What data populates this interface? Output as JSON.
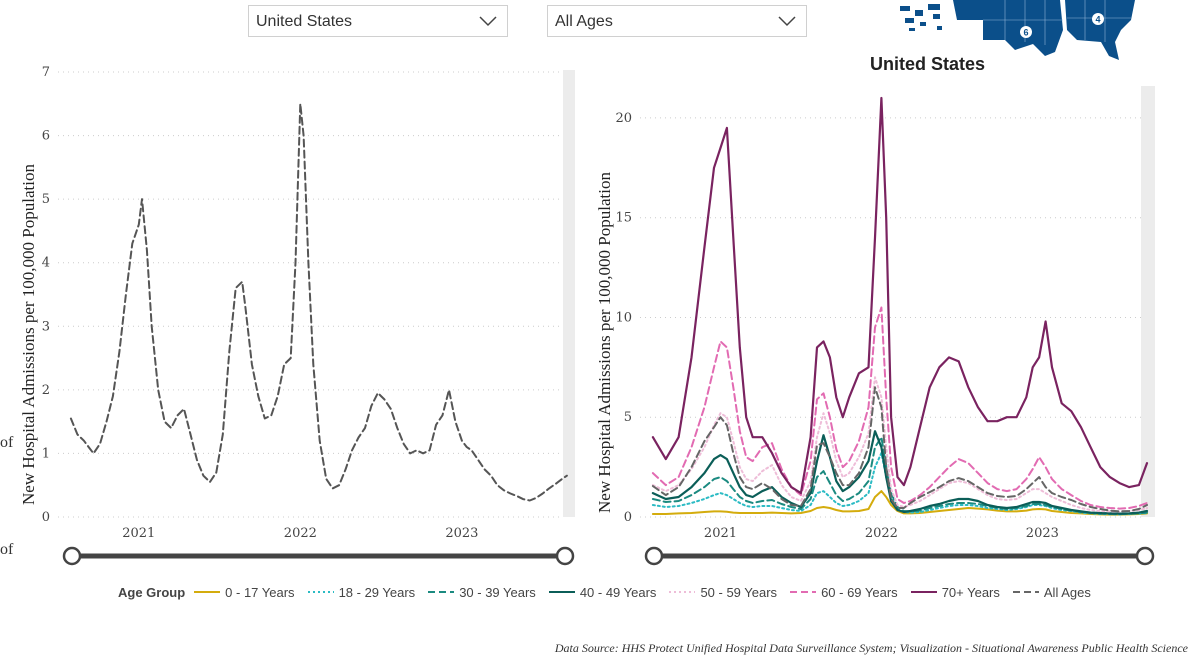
{
  "filters": {
    "region": {
      "selected": "United States"
    },
    "age": {
      "selected": "All Ages"
    }
  },
  "map": {
    "badges": [
      "6",
      "4"
    ]
  },
  "stray_text": [
    "of",
    "of"
  ],
  "legend": {
    "title": "Age Group",
    "items": [
      {
        "label": "0 - 17 Years",
        "color": "#d4ac0d",
        "dash": "solid"
      },
      {
        "label": "18 - 29 Years",
        "color": "#2bbbc4",
        "dash": "dot"
      },
      {
        "label": "30 - 39 Years",
        "color": "#1b8a80",
        "dash": "dash"
      },
      {
        "label": "40 - 49 Years",
        "color": "#0b5e58",
        "dash": "solid"
      },
      {
        "label": "50 - 59 Years",
        "color": "#eebdd8",
        "dash": "dot"
      },
      {
        "label": "60 - 69 Years",
        "color": "#e26bb2",
        "dash": "dash"
      },
      {
        "label": "70+ Years",
        "color": "#7a2360",
        "dash": "solid"
      },
      {
        "label": "All Ages",
        "color": "#666666",
        "dash": "dash"
      }
    ]
  },
  "source": "Data Source: HHS Protect Unified Hospital Data Surveillance System; Visualization - Situational Awareness Public Health Science",
  "chart_data": [
    {
      "type": "line",
      "title": "",
      "ylabel": "New Hospital Admissions per 100,000 Population",
      "xlabel": "",
      "x_ticks": [
        "2021",
        "2022",
        "2023"
      ],
      "ylim": [
        0,
        7
      ],
      "y_ticks": [
        0,
        1,
        2,
        3,
        4,
        5,
        6,
        7
      ],
      "xlim": [
        2020.5,
        2023.7
      ],
      "grid": "horizontal dotted",
      "series": [
        {
          "name": "All Ages",
          "color": "#555555",
          "dash": "dash",
          "x": [
            2020.58,
            2020.62,
            2020.66,
            2020.69,
            2020.72,
            2020.76,
            2020.8,
            2020.84,
            2020.88,
            2020.92,
            2020.96,
            2021.0,
            2021.02,
            2021.05,
            2021.08,
            2021.12,
            2021.16,
            2021.2,
            2021.24,
            2021.28,
            2021.32,
            2021.36,
            2021.4,
            2021.44,
            2021.48,
            2021.52,
            2021.56,
            2021.6,
            2021.64,
            2021.66,
            2021.7,
            2021.74,
            2021.78,
            2021.82,
            2021.86,
            2021.9,
            2021.94,
            2021.97,
            2022.0,
            2022.02,
            2022.05,
            2022.08,
            2022.12,
            2022.16,
            2022.2,
            2022.24,
            2022.28,
            2022.32,
            2022.36,
            2022.4,
            2022.44,
            2022.48,
            2022.52,
            2022.56,
            2022.6,
            2022.64,
            2022.68,
            2022.72,
            2022.76,
            2022.8,
            2022.84,
            2022.88,
            2022.92,
            2022.96,
            2023.0,
            2023.03,
            2023.06,
            2023.1,
            2023.14,
            2023.18,
            2023.22,
            2023.26,
            2023.3,
            2023.34,
            2023.38,
            2023.42,
            2023.46,
            2023.5,
            2023.54,
            2023.58,
            2023.62,
            2023.65
          ],
          "y": [
            1.55,
            1.3,
            1.2,
            1.1,
            1.0,
            1.15,
            1.5,
            1.9,
            2.6,
            3.5,
            4.3,
            4.6,
            5.0,
            4.2,
            3.0,
            2.0,
            1.5,
            1.4,
            1.6,
            1.7,
            1.3,
            0.9,
            0.65,
            0.55,
            0.7,
            1.3,
            2.6,
            3.6,
            3.7,
            3.3,
            2.4,
            1.9,
            1.55,
            1.6,
            1.9,
            2.4,
            2.5,
            4.0,
            6.5,
            6.0,
            4.0,
            2.4,
            1.2,
            0.6,
            0.45,
            0.5,
            0.75,
            1.05,
            1.25,
            1.4,
            1.75,
            1.95,
            1.85,
            1.7,
            1.4,
            1.15,
            1.0,
            1.05,
            1.0,
            1.05,
            1.45,
            1.6,
            2.0,
            1.5,
            1.2,
            1.1,
            1.05,
            0.9,
            0.75,
            0.65,
            0.5,
            0.42,
            0.37,
            0.33,
            0.28,
            0.26,
            0.3,
            0.37,
            0.45,
            0.52,
            0.6,
            0.65
          ]
        }
      ]
    },
    {
      "type": "line",
      "title": "United States",
      "ylabel": "New Hospital Admissions per 100,000 Population",
      "xlabel": "",
      "x_ticks": [
        "2021",
        "2022",
        "2023"
      ],
      "ylim": [
        0,
        21.5
      ],
      "y_ticks": [
        0,
        5,
        10,
        15,
        20
      ],
      "xlim": [
        2020.5,
        2023.7
      ],
      "grid": "horizontal dotted",
      "x": [
        2020.58,
        2020.66,
        2020.74,
        2020.82,
        2020.9,
        2020.96,
        2021.0,
        2021.04,
        2021.08,
        2021.12,
        2021.16,
        2021.2,
        2021.26,
        2021.32,
        2021.38,
        2021.44,
        2021.5,
        2021.56,
        2021.6,
        2021.64,
        2021.68,
        2021.72,
        2021.76,
        2021.8,
        2021.86,
        2021.92,
        2021.96,
        2022.0,
        2022.03,
        2022.06,
        2022.1,
        2022.14,
        2022.18,
        2022.24,
        2022.3,
        2022.36,
        2022.42,
        2022.48,
        2022.54,
        2022.6,
        2022.66,
        2022.72,
        2022.78,
        2022.84,
        2022.9,
        2022.94,
        2022.98,
        2023.02,
        2023.06,
        2023.12,
        2023.18,
        2023.24,
        2023.3,
        2023.36,
        2023.42,
        2023.48,
        2023.54,
        2023.6,
        2023.65
      ],
      "series": [
        {
          "name": "0 - 17 Years",
          "color": "#d4ac0d",
          "dash": "solid",
          "values": [
            0.15,
            0.15,
            0.18,
            0.2,
            0.25,
            0.28,
            0.28,
            0.26,
            0.22,
            0.2,
            0.2,
            0.2,
            0.2,
            0.22,
            0.2,
            0.18,
            0.2,
            0.3,
            0.45,
            0.5,
            0.45,
            0.35,
            0.28,
            0.28,
            0.3,
            0.4,
            1.0,
            1.3,
            1.0,
            0.6,
            0.3,
            0.18,
            0.18,
            0.2,
            0.25,
            0.3,
            0.35,
            0.4,
            0.45,
            0.42,
            0.38,
            0.32,
            0.28,
            0.28,
            0.32,
            0.38,
            0.4,
            0.38,
            0.3,
            0.25,
            0.2,
            0.18,
            0.15,
            0.13,
            0.12,
            0.12,
            0.13,
            0.15,
            0.18
          ]
        },
        {
          "name": "18 - 29 Years",
          "color": "#2bbbc4",
          "dash": "dot",
          "values": [
            0.6,
            0.5,
            0.55,
            0.7,
            0.9,
            1.1,
            1.2,
            1.1,
            0.9,
            0.7,
            0.55,
            0.5,
            0.55,
            0.55,
            0.45,
            0.35,
            0.3,
            0.6,
            1.2,
            1.3,
            1.0,
            0.7,
            0.55,
            0.6,
            0.8,
            1.2,
            2.5,
            3.2,
            2.0,
            1.0,
            0.4,
            0.25,
            0.22,
            0.25,
            0.35,
            0.45,
            0.55,
            0.6,
            0.6,
            0.55,
            0.45,
            0.4,
            0.35,
            0.4,
            0.5,
            0.6,
            0.6,
            0.55,
            0.45,
            0.35,
            0.3,
            0.22,
            0.18,
            0.15,
            0.14,
            0.13,
            0.15,
            0.17,
            0.2
          ]
        },
        {
          "name": "30 - 39 Years",
          "color": "#1b8a80",
          "dash": "dash",
          "values": [
            0.9,
            0.75,
            0.8,
            1.1,
            1.5,
            1.9,
            2.0,
            1.8,
            1.4,
            1.0,
            0.8,
            0.7,
            0.8,
            0.85,
            0.65,
            0.5,
            0.4,
            0.9,
            2.0,
            2.3,
            1.7,
            1.1,
            0.8,
            0.9,
            1.2,
            1.8,
            3.5,
            4.0,
            2.5,
            1.2,
            0.5,
            0.3,
            0.28,
            0.32,
            0.45,
            0.55,
            0.65,
            0.7,
            0.7,
            0.65,
            0.55,
            0.45,
            0.4,
            0.45,
            0.55,
            0.65,
            0.65,
            0.6,
            0.5,
            0.4,
            0.32,
            0.25,
            0.2,
            0.17,
            0.15,
            0.14,
            0.16,
            0.18,
            0.22
          ]
        },
        {
          "name": "40 - 49 Years",
          "color": "#0b5e58",
          "dash": "solid",
          "values": [
            1.2,
            0.9,
            1.0,
            1.5,
            2.2,
            2.9,
            3.1,
            2.9,
            2.2,
            1.5,
            1.1,
            1.0,
            1.3,
            1.5,
            1.0,
            0.7,
            0.5,
            1.2,
            2.8,
            4.1,
            3.0,
            1.8,
            1.3,
            1.5,
            2.0,
            2.8,
            4.3,
            3.5,
            2.0,
            0.8,
            0.35,
            0.25,
            0.3,
            0.4,
            0.55,
            0.65,
            0.8,
            0.9,
            0.9,
            0.8,
            0.6,
            0.5,
            0.45,
            0.5,
            0.65,
            0.75,
            0.75,
            0.7,
            0.55,
            0.45,
            0.35,
            0.28,
            0.22,
            0.2,
            0.18,
            0.17,
            0.18,
            0.22,
            0.3
          ]
        },
        {
          "name": "50 - 59 Years",
          "color": "#eebdd8",
          "dash": "dot",
          "values": [
            1.6,
            1.3,
            1.6,
            2.4,
            3.5,
            4.6,
            5.2,
            5.0,
            3.8,
            2.5,
            1.9,
            1.8,
            2.3,
            2.6,
            1.6,
            1.0,
            0.8,
            1.8,
            4.0,
            5.2,
            4.2,
            2.8,
            2.0,
            2.2,
            3.0,
            4.2,
            7.0,
            6.0,
            3.5,
            1.4,
            0.6,
            0.5,
            0.6,
            0.8,
            1.1,
            1.4,
            1.7,
            1.8,
            1.7,
            1.4,
            1.1,
            0.9,
            0.85,
            0.9,
            1.2,
            1.4,
            1.4,
            1.2,
            1.0,
            0.8,
            0.6,
            0.45,
            0.35,
            0.3,
            0.28,
            0.27,
            0.3,
            0.35,
            0.45
          ]
        },
        {
          "name": "60 - 69 Years",
          "color": "#e26bb2",
          "dash": "dash",
          "values": [
            2.2,
            1.6,
            2.0,
            3.5,
            5.5,
            7.5,
            8.8,
            8.5,
            6.5,
            4.3,
            3.0,
            2.8,
            3.5,
            3.7,
            2.4,
            1.5,
            1.1,
            2.8,
            5.9,
            6.2,
            5.0,
            3.4,
            2.5,
            2.8,
            3.8,
            5.5,
            9.5,
            10.5,
            6.0,
            2.5,
            0.9,
            0.7,
            0.8,
            1.1,
            1.5,
            2.0,
            2.5,
            2.9,
            2.7,
            2.2,
            1.7,
            1.4,
            1.3,
            1.4,
            1.9,
            2.4,
            3.0,
            2.5,
            1.9,
            1.4,
            1.1,
            0.8,
            0.6,
            0.5,
            0.45,
            0.42,
            0.45,
            0.55,
            0.7
          ]
        },
        {
          "name": "70+ Years",
          "color": "#7a2360",
          "dash": "solid",
          "values": [
            4.0,
            2.9,
            4.0,
            8.0,
            13.5,
            17.5,
            18.5,
            19.5,
            14.0,
            8.5,
            5.0,
            4.0,
            4.0,
            3.2,
            2.2,
            1.5,
            1.2,
            4.0,
            8.5,
            8.8,
            8.0,
            6.0,
            5.0,
            6.0,
            7.2,
            7.5,
            14.0,
            21.0,
            15.0,
            5.0,
            2.0,
            1.6,
            2.5,
            4.5,
            6.5,
            7.5,
            8.0,
            7.8,
            6.5,
            5.5,
            4.8,
            4.8,
            5.0,
            5.0,
            6.0,
            7.5,
            8.0,
            9.8,
            7.5,
            5.7,
            5.3,
            4.5,
            3.5,
            2.5,
            2.0,
            1.7,
            1.5,
            1.6,
            2.7
          ]
        },
        {
          "name": "All Ages",
          "color": "#666666",
          "dash": "dash",
          "values": [
            1.55,
            1.1,
            1.5,
            2.5,
            3.8,
            4.5,
            5.0,
            4.6,
            3.2,
            2.0,
            1.5,
            1.4,
            1.7,
            1.4,
            0.9,
            0.6,
            0.55,
            1.4,
            3.6,
            3.7,
            3.0,
            2.2,
            1.6,
            1.6,
            2.2,
            3.5,
            6.5,
            5.5,
            2.5,
            0.9,
            0.45,
            0.45,
            0.7,
            1.0,
            1.25,
            1.5,
            1.8,
            1.95,
            1.8,
            1.5,
            1.2,
            1.05,
            1.0,
            1.05,
            1.4,
            1.7,
            2.0,
            1.5,
            1.2,
            1.0,
            0.85,
            0.65,
            0.5,
            0.4,
            0.32,
            0.28,
            0.3,
            0.4,
            0.6
          ]
        }
      ]
    }
  ]
}
